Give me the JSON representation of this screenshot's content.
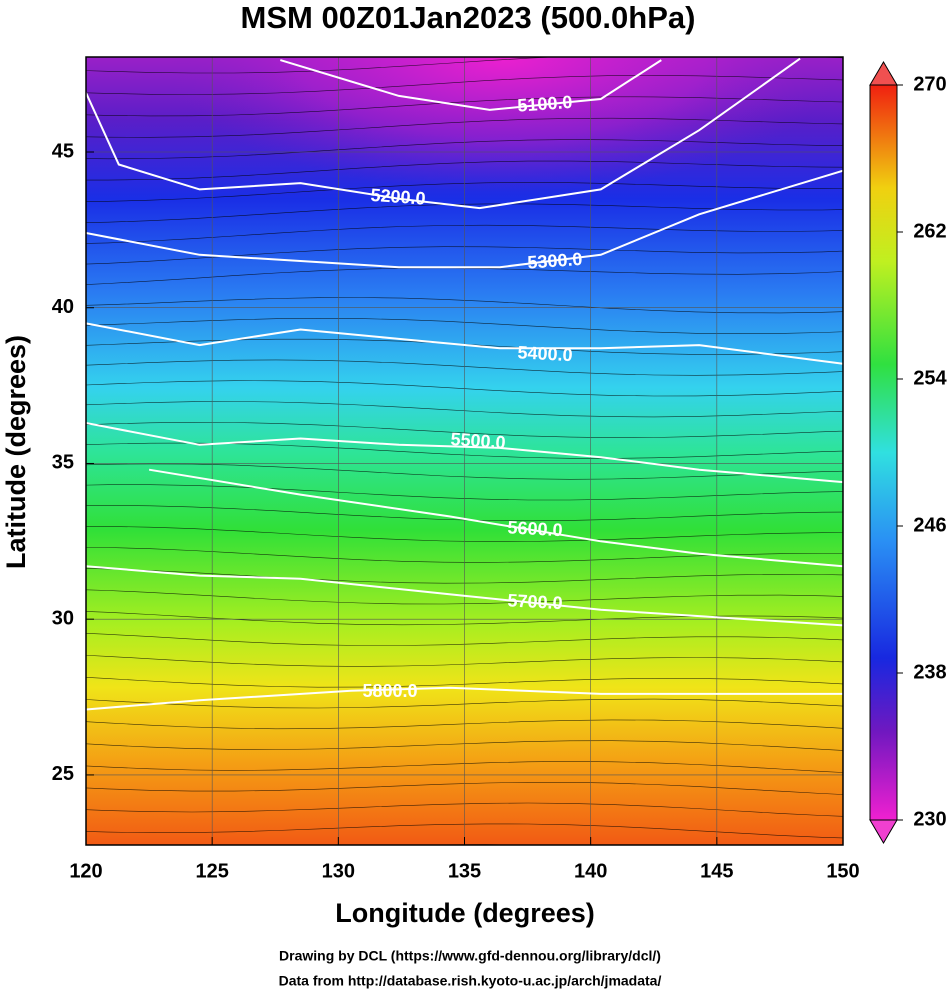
{
  "chart_data": {
    "type": "contour",
    "title": "MSM 00Z01Jan2023 (500.0hPa)",
    "x_label": "Longitude (degrees)",
    "y_label": "Latitude  (degrees)",
    "xlim": [
      120,
      150
    ],
    "ylim": [
      22.75,
      48.05
    ],
    "xticks": [
      120,
      125,
      130,
      135,
      140,
      145,
      150
    ],
    "yticks": [
      25,
      30,
      35,
      40,
      45
    ],
    "grid": true,
    "contours": [
      {
        "label": "5100.0",
        "lon": [
          127.7,
          132.4,
          136.0,
          140.4,
          142.8
        ],
        "lat": [
          47.95,
          46.8,
          46.35,
          46.7,
          47.95
        ]
      },
      {
        "label": "5200.0",
        "lon": [
          120,
          121.3,
          124.5,
          128.5,
          132.4,
          135.6,
          140.4,
          144.3,
          148.3
        ],
        "lat": [
          46.9,
          44.6,
          43.8,
          44.0,
          43.5,
          43.2,
          43.8,
          45.7,
          48.0
        ]
      },
      {
        "label": "5300.0",
        "lon": [
          120,
          124.5,
          128.5,
          132.4,
          136.4,
          140.4,
          144.3,
          150
        ],
        "lat": [
          42.4,
          41.7,
          41.5,
          41.3,
          41.3,
          41.7,
          43.0,
          44.4
        ]
      },
      {
        "label": "5400.0",
        "lon": [
          120,
          124.5,
          128.5,
          132.4,
          136.4,
          140.4,
          144.3,
          150
        ],
        "lat": [
          39.5,
          38.8,
          39.3,
          39.0,
          38.7,
          38.7,
          38.8,
          38.2
        ]
      },
      {
        "label": "5500.0",
        "lon": [
          120,
          124.5,
          128.5,
          132.4,
          136.4,
          140.4,
          144.3,
          150
        ],
        "lat": [
          36.3,
          35.6,
          35.8,
          35.6,
          35.5,
          35.2,
          34.8,
          34.4
        ]
      },
      {
        "label": "5600.0",
        "lon": [
          122.5,
          128.5,
          134.4,
          140.4,
          144.3,
          150
        ],
        "lat": [
          34.8,
          34.0,
          33.3,
          32.5,
          32.1,
          31.7
        ]
      },
      {
        "label": "5700.0",
        "lon": [
          120,
          124.5,
          128.5,
          134.4,
          140.4,
          144.3,
          150
        ],
        "lat": [
          31.7,
          31.4,
          31.3,
          30.8,
          30.3,
          30.1,
          29.8
        ]
      },
      {
        "label": "5800.0",
        "lon": [
          120,
          124.5,
          130.5,
          134.4,
          140.4,
          144.3,
          150
        ],
        "lat": [
          27.1,
          27.4,
          27.7,
          27.8,
          27.6,
          27.6,
          27.6
        ]
      }
    ],
    "colorbar": {
      "clim": [
        230,
        270
      ],
      "ticks": [
        230,
        238,
        246,
        254,
        262,
        270
      ]
    },
    "footer": [
      "Drawing by DCL (https://www.gfd-dennou.org/library/dcl/)",
      "Data from http://database.rish.kyoto-u.ac.jp/arch/jmadata/"
    ]
  }
}
